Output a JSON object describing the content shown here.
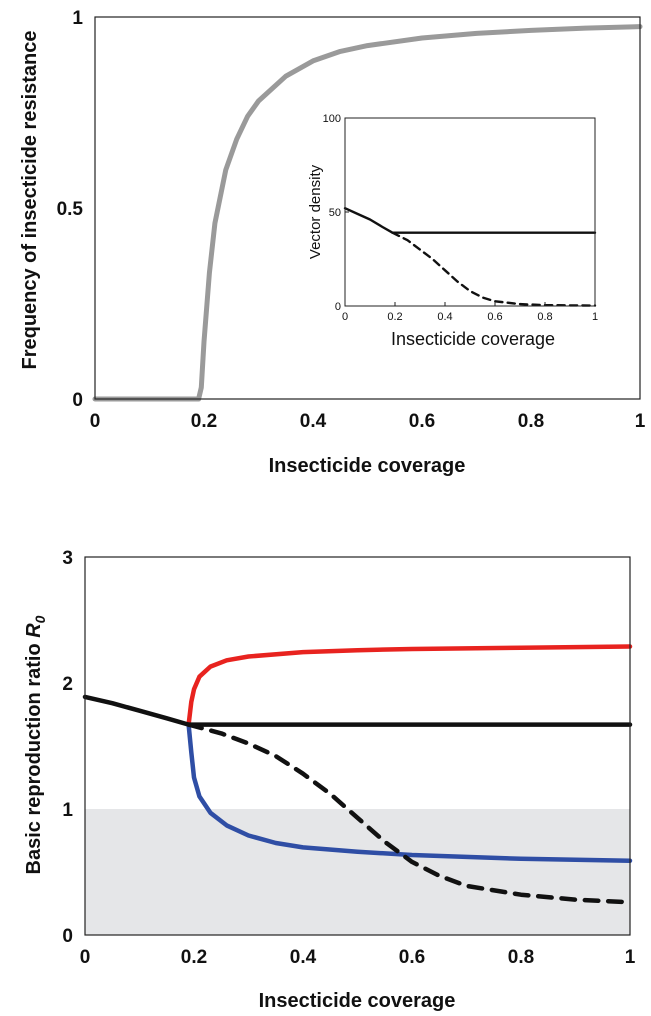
{
  "chart_data": [
    {
      "id": "top",
      "type": "line",
      "xlabel": "Insecticide coverage",
      "ylabel": "Frequency of insecticide resistance",
      "xlim": [
        0,
        1
      ],
      "ylim": [
        0,
        1
      ],
      "xticks": [
        "0",
        "0.2",
        "0.4",
        "0.6",
        "0.8",
        "1"
      ],
      "yticks": [
        "0",
        "0.5",
        "1"
      ],
      "grid": false,
      "series": [
        {
          "color": "#9a9a9a",
          "style": "solid",
          "points": [
            [
              0,
              0
            ],
            [
              0.19,
              0
            ],
            [
              0.195,
              0.03
            ],
            [
              0.2,
              0.15
            ],
            [
              0.21,
              0.33
            ],
            [
              0.22,
              0.46
            ],
            [
              0.24,
              0.6
            ],
            [
              0.26,
              0.68
            ],
            [
              0.28,
              0.74
            ],
            [
              0.3,
              0.78
            ],
            [
              0.35,
              0.845
            ],
            [
              0.4,
              0.885
            ],
            [
              0.45,
              0.91
            ],
            [
              0.5,
              0.925
            ],
            [
              0.6,
              0.945
            ],
            [
              0.7,
              0.957
            ],
            [
              0.8,
              0.965
            ],
            [
              0.9,
              0.971
            ],
            [
              1.0,
              0.975
            ]
          ]
        }
      ]
    },
    {
      "id": "inset",
      "type": "line",
      "xlabel": "Insecticide coverage",
      "ylabel": "Vector density",
      "xlim": [
        0,
        1
      ],
      "ylim": [
        0,
        100
      ],
      "xticks": [
        "0",
        "0.2",
        "0.4",
        "0.6",
        "0.8",
        "1"
      ],
      "yticks": [
        "0",
        "50",
        "100"
      ],
      "grid": false,
      "series": [
        {
          "color": "#111111",
          "style": "solid",
          "points": [
            [
              0,
              52
            ],
            [
              0.05,
              49
            ],
            [
              0.1,
              46
            ],
            [
              0.15,
              42
            ],
            [
              0.19,
              39
            ],
            [
              0.25,
              39
            ],
            [
              0.5,
              39
            ],
            [
              0.75,
              39
            ],
            [
              1.0,
              39
            ]
          ]
        },
        {
          "color": "#111111",
          "style": "dashed",
          "points": [
            [
              0.19,
              39
            ],
            [
              0.25,
              35
            ],
            [
              0.3,
              30
            ],
            [
              0.35,
              25
            ],
            [
              0.4,
              19
            ],
            [
              0.45,
              13
            ],
            [
              0.5,
              8
            ],
            [
              0.55,
              4.5
            ],
            [
              0.6,
              2.5
            ],
            [
              0.7,
              1
            ],
            [
              0.8,
              0.5
            ],
            [
              0.9,
              0.3
            ],
            [
              1.0,
              0.2
            ]
          ]
        }
      ]
    },
    {
      "id": "bottom",
      "type": "line",
      "xlabel": "Insecticide coverage",
      "ylabel": "Basic reproduction ratio",
      "ylabel_symbol": "R",
      "ylabel_subscript": "0",
      "xlim": [
        0,
        1
      ],
      "ylim": [
        0,
        3
      ],
      "xticks": [
        "0",
        "0.2",
        "0.4",
        "0.6",
        "0.8",
        "1"
      ],
      "yticks": [
        "0",
        "1",
        "2",
        "3"
      ],
      "grid": false,
      "shaded_region": {
        "y_from": 0,
        "y_to": 1,
        "color": "#e5e6e8"
      },
      "series": [
        {
          "color": "#e8231f",
          "style": "solid",
          "points": [
            [
              0.19,
              1.67
            ],
            [
              0.195,
              1.85
            ],
            [
              0.2,
              1.95
            ],
            [
              0.21,
              2.05
            ],
            [
              0.23,
              2.13
            ],
            [
              0.26,
              2.18
            ],
            [
              0.3,
              2.21
            ],
            [
              0.4,
              2.245
            ],
            [
              0.5,
              2.26
            ],
            [
              0.6,
              2.27
            ],
            [
              0.8,
              2.28
            ],
            [
              1.0,
              2.29
            ]
          ]
        },
        {
          "color": "#2f4ea5",
          "style": "solid",
          "points": [
            [
              0.19,
              1.67
            ],
            [
              0.195,
              1.45
            ],
            [
              0.2,
              1.25
            ],
            [
              0.21,
              1.1
            ],
            [
              0.23,
              0.97
            ],
            [
              0.26,
              0.87
            ],
            [
              0.3,
              0.79
            ],
            [
              0.35,
              0.73
            ],
            [
              0.4,
              0.695
            ],
            [
              0.5,
              0.66
            ],
            [
              0.6,
              0.635
            ],
            [
              0.8,
              0.605
            ],
            [
              1.0,
              0.59
            ]
          ]
        },
        {
          "color": "#111111",
          "style": "solid",
          "points": [
            [
              0,
              1.89
            ],
            [
              0.05,
              1.84
            ],
            [
              0.1,
              1.78
            ],
            [
              0.15,
              1.72
            ],
            [
              0.19,
              1.67
            ],
            [
              0.3,
              1.67
            ],
            [
              0.5,
              1.67
            ],
            [
              0.75,
              1.67
            ],
            [
              1.0,
              1.67
            ]
          ]
        },
        {
          "color": "#111111",
          "style": "dashed",
          "points": [
            [
              0.19,
              1.67
            ],
            [
              0.25,
              1.6
            ],
            [
              0.3,
              1.52
            ],
            [
              0.35,
              1.42
            ],
            [
              0.4,
              1.28
            ],
            [
              0.45,
              1.12
            ],
            [
              0.5,
              0.93
            ],
            [
              0.55,
              0.74
            ],
            [
              0.6,
              0.58
            ],
            [
              0.65,
              0.47
            ],
            [
              0.7,
              0.39
            ],
            [
              0.8,
              0.32
            ],
            [
              0.9,
              0.28
            ],
            [
              1.0,
              0.26
            ]
          ]
        }
      ]
    }
  ]
}
